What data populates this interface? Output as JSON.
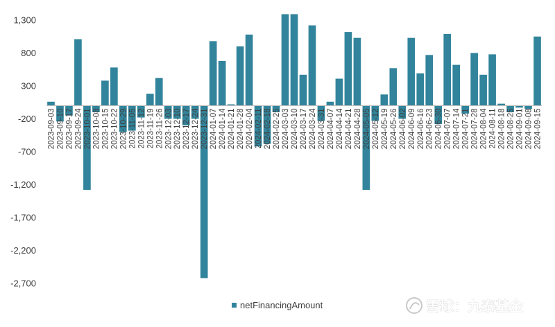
{
  "chart_data": {
    "type": "bar",
    "categories": [
      "2023-09-03",
      "2023-09-10",
      "2023-09-17",
      "2023-09-24",
      "2023-10-01",
      "2023-10-08",
      "2023-10-15",
      "2023-10-22",
      "2023-10-29",
      "2023-11-05",
      "2023-11-12",
      "2023-11-19",
      "2023-11-26",
      "2023-12-03",
      "2023-12-10",
      "2023-12-17",
      "2023-12-24",
      "2023-12-31",
      "2024-01-07",
      "2024-01-14",
      "2024-01-21",
      "2024-01-28",
      "2024-02-04",
      "2024-02-11",
      "2024-02-18",
      "2024-02-25",
      "2024-03-03",
      "2024-03-10",
      "2024-03-17",
      "2024-03-24",
      "2024-03-31",
      "2024-04-07",
      "2024-04-14",
      "2024-04-21",
      "2024-04-28",
      "2024-05-05",
      "2024-05-12",
      "2024-05-19",
      "2024-05-26",
      "2024-06-02",
      "2024-06-09",
      "2024-06-16",
      "2024-06-23",
      "2024-06-30",
      "2024-07-07",
      "2024-07-14",
      "2024-07-21",
      "2024-07-28",
      "2024-08-04",
      "2024-08-11",
      "2024-08-18",
      "2024-08-25",
      "2024-09-01",
      "2024-09-08",
      "2024-09-15"
    ],
    "series": [
      {
        "name": "netFinancingAmount",
        "values": [
          60,
          -240,
          -150,
          1010,
          -1280,
          -100,
          380,
          580,
          -400,
          -380,
          -180,
          180,
          420,
          -200,
          -200,
          -300,
          -200,
          -2620,
          980,
          680,
          20,
          900,
          1080,
          -620,
          -580,
          -100,
          1390,
          1390,
          470,
          1220,
          -230,
          60,
          410,
          1120,
          1030,
          -1280,
          -230,
          170,
          570,
          -200,
          1030,
          490,
          770,
          -280,
          1090,
          620,
          -120,
          800,
          470,
          780,
          30,
          -100,
          -30,
          -50,
          1050
        ],
        "color": "#31849B"
      }
    ],
    "xtick_labels": [
      "2023-09-03",
      "2023-09-10",
      "2023-09-17",
      "2023-09-24",
      "2023-10-01",
      "2023-10-08",
      "2023-10-15",
      "2023-10-22",
      "2023-10-29",
      "2023-11-05",
      "2023-11-12",
      "2023-11-19",
      "2023-11-26",
      "2023-12-03",
      "2023-12-10",
      "2023-12-17",
      "2023-12-24",
      "2023-12-31",
      "2024-01-07",
      "2024-01-14",
      "2024-01-21",
      "2024-01-28",
      "2024-02-04",
      "2024-02-11",
      "2024-02-18",
      "2024-02-25",
      "2024-03-03",
      "2024-03-10",
      "2024-03-17",
      "2024-03-24",
      "2024-03-31",
      "2024-04-07",
      "2024-04-14",
      "2024-04-21",
      "2024-04-28",
      "2024-05-05",
      "2024-05-12",
      "2024-05-19",
      "2024-05-26",
      "2024-06-02",
      "2024-06-09",
      "2024-06-16",
      "2024-06-23",
      "2024-06-30",
      "2024-07-07",
      "2024-07-14",
      "2024-07-21",
      "2024-07-28",
      "2024-08-04",
      "2024-08-11",
      "2024-08-18",
      "2024-08-25",
      "2024-09-01",
      "2024-09-08",
      "2024-09-15"
    ],
    "yticks": [
      1300,
      800,
      300,
      -200,
      -700,
      -1200,
      -1700,
      -2200,
      -2700
    ],
    "ytick_labels": [
      "1,300",
      "800",
      "300",
      "-200",
      "-700",
      "-1,200",
      "-1,700",
      "-2,200",
      "-2,700"
    ],
    "ylim": [
      -2700,
      1400
    ],
    "title": "",
    "xlabel": "",
    "ylabel": "",
    "grid": false,
    "legend": {
      "position": "bottom-center",
      "entries": [
        "netFinancingAmount"
      ]
    }
  },
  "watermark": {
    "text": "雪球：九泰基金",
    "icon": "snowball-logo-icon"
  }
}
